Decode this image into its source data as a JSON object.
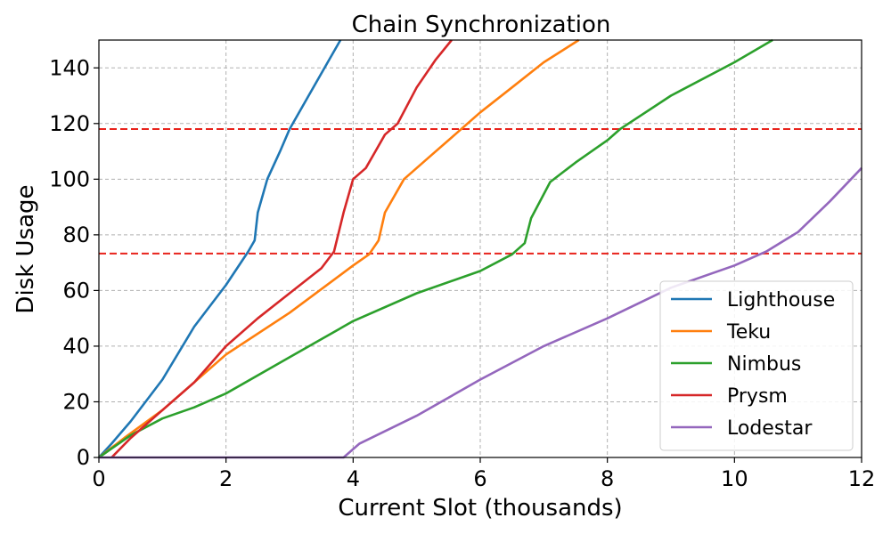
{
  "chart_data": {
    "type": "line",
    "title": "Chain Synchronization",
    "xlabel": "Current Slot (thousands)",
    "ylabel": "Disk Usage",
    "xlim": [
      0,
      12
    ],
    "ylim": [
      0,
      150
    ],
    "xticks": [
      0,
      2,
      4,
      6,
      8,
      10,
      12
    ],
    "yticks": [
      0,
      20,
      40,
      60,
      80,
      100,
      120,
      140
    ],
    "grid": true,
    "legend_position": "lower-right",
    "hlines": [
      {
        "y": 118,
        "color": "#e8231c",
        "style": "dashed"
      },
      {
        "y": 73.3,
        "color": "#e8231c",
        "style": "dashed"
      }
    ],
    "series": [
      {
        "name": "Lighthouse",
        "color": "#1f77b4",
        "points": [
          [
            0,
            0
          ],
          [
            0.2,
            5
          ],
          [
            0.5,
            13
          ],
          [
            1.0,
            28
          ],
          [
            1.5,
            47
          ],
          [
            2.0,
            62
          ],
          [
            2.35,
            74
          ],
          [
            2.45,
            78
          ],
          [
            2.5,
            88
          ],
          [
            2.65,
            100
          ],
          [
            2.85,
            110
          ],
          [
            3.0,
            118
          ],
          [
            3.3,
            130
          ],
          [
            3.6,
            142
          ],
          [
            3.8,
            150
          ]
        ]
      },
      {
        "name": "Teku",
        "color": "#ff7f0e",
        "points": [
          [
            0,
            0
          ],
          [
            0.4,
            7
          ],
          [
            1.0,
            17
          ],
          [
            2.0,
            37
          ],
          [
            3.0,
            52
          ],
          [
            4.0,
            69
          ],
          [
            4.25,
            73
          ],
          [
            4.4,
            78
          ],
          [
            4.5,
            88
          ],
          [
            4.8,
            100
          ],
          [
            5.2,
            108
          ],
          [
            5.6,
            116
          ],
          [
            6.0,
            124
          ],
          [
            6.5,
            133
          ],
          [
            7.0,
            142
          ],
          [
            7.55,
            150
          ]
        ]
      },
      {
        "name": "Nimbus",
        "color": "#2ca02c",
        "points": [
          [
            0,
            0
          ],
          [
            0.5,
            8
          ],
          [
            1.0,
            14
          ],
          [
            1.5,
            18
          ],
          [
            2.0,
            23
          ],
          [
            3.0,
            36
          ],
          [
            4.0,
            49
          ],
          [
            5.0,
            59
          ],
          [
            6.0,
            67
          ],
          [
            6.5,
            73
          ],
          [
            6.7,
            77
          ],
          [
            6.8,
            86
          ],
          [
            7.1,
            99
          ],
          [
            7.5,
            106
          ],
          [
            8.0,
            114
          ],
          [
            8.2,
            118
          ],
          [
            9.0,
            130
          ],
          [
            10.0,
            142
          ],
          [
            10.6,
            150
          ]
        ]
      },
      {
        "name": "Prysm",
        "color": "#d62728",
        "points": [
          [
            0.2,
            0
          ],
          [
            0.5,
            7
          ],
          [
            1.0,
            17
          ],
          [
            1.5,
            27
          ],
          [
            2.0,
            40
          ],
          [
            2.5,
            50
          ],
          [
            3.0,
            59
          ],
          [
            3.5,
            68
          ],
          [
            3.7,
            74
          ],
          [
            3.85,
            88
          ],
          [
            4.0,
            100
          ],
          [
            4.2,
            104
          ],
          [
            4.35,
            110
          ],
          [
            4.5,
            116
          ],
          [
            4.7,
            120
          ],
          [
            5.0,
            133
          ],
          [
            5.3,
            143
          ],
          [
            5.55,
            150
          ]
        ]
      },
      {
        "name": "Lodestar",
        "color": "#9467bd",
        "points": [
          [
            0,
            0
          ],
          [
            3.85,
            0
          ],
          [
            4.1,
            5
          ],
          [
            5.0,
            15
          ],
          [
            6.0,
            28
          ],
          [
            7.0,
            40
          ],
          [
            8.0,
            50
          ],
          [
            9.0,
            61
          ],
          [
            10.0,
            69
          ],
          [
            10.5,
            74
          ],
          [
            11.0,
            81
          ],
          [
            11.5,
            92
          ],
          [
            12.0,
            104
          ]
        ]
      }
    ]
  }
}
